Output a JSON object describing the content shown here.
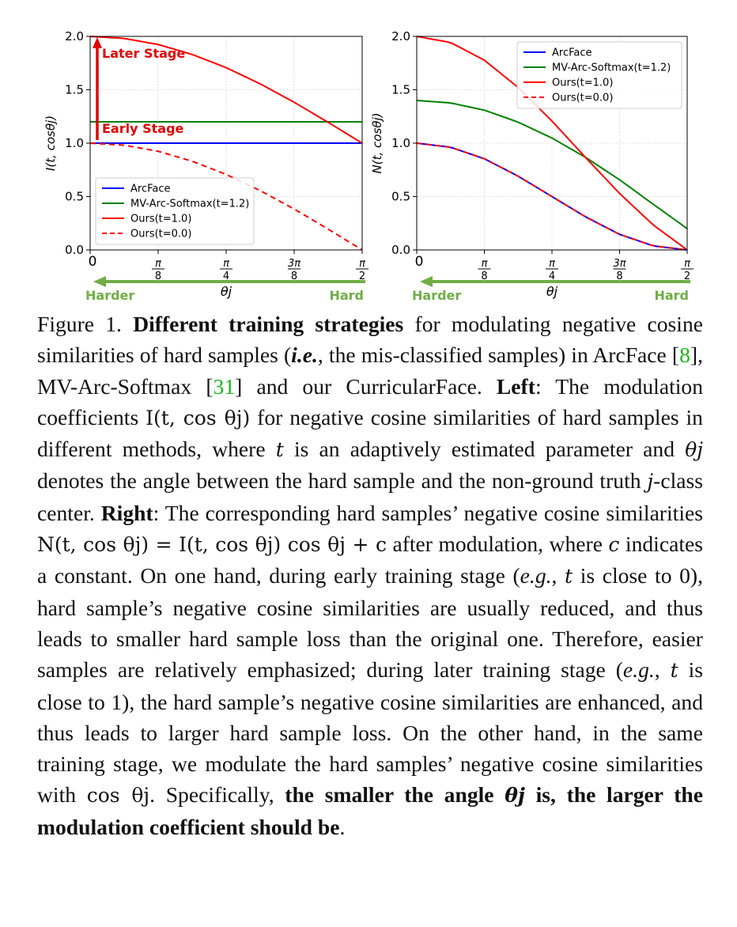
{
  "chart_data": [
    {
      "type": "line",
      "title": "",
      "xlabel": "θj",
      "ylabel": "I(t, cosθj)",
      "xlim": [
        0,
        1.5708
      ],
      "ylim": [
        0,
        2.0
      ],
      "xticks": [
        0,
        0.3927,
        0.7854,
        1.1781,
        1.5708
      ],
      "xtick_labels": [
        "0",
        "π/8",
        "π/4",
        "3π/8",
        "π/2"
      ],
      "yticks": [
        0,
        0.5,
        1.0,
        1.5,
        2.0
      ],
      "ytick_labels": [
        "0.0",
        "0.5",
        "1.0",
        "1.5",
        "2.0"
      ],
      "grid": true,
      "legend_position": "lower-left",
      "series": [
        {
          "name": "ArcFace",
          "color": "#0000ff",
          "dash": "solid",
          "x": [
            0,
            0.3927,
            0.7854,
            1.1781,
            1.5708
          ],
          "y": [
            1.0,
            1.0,
            1.0,
            1.0,
            1.0
          ]
        },
        {
          "name": "MV-Arc-Softmax(t=1.2)",
          "color": "#008000",
          "dash": "solid",
          "x": [
            0,
            0.3927,
            0.7854,
            1.1781,
            1.5708
          ],
          "y": [
            1.2,
            1.2,
            1.2,
            1.2,
            1.2
          ]
        },
        {
          "name": "Ours(t=1.0)",
          "color": "#ff0000",
          "dash": "solid",
          "x": [
            0,
            0.1963,
            0.3927,
            0.589,
            0.7854,
            0.9817,
            1.1781,
            1.3744,
            1.5708
          ],
          "y": [
            2.0,
            1.981,
            1.924,
            1.831,
            1.707,
            1.556,
            1.383,
            1.195,
            1.0
          ]
        },
        {
          "name": "Ours(t=0.0)",
          "color": "#ff0000",
          "dash": "dashed",
          "x": [
            0,
            0.1963,
            0.3927,
            0.589,
            0.7854,
            0.9817,
            1.1781,
            1.3744,
            1.5708
          ],
          "y": [
            1.0,
            0.981,
            0.924,
            0.831,
            0.707,
            0.556,
            0.383,
            0.195,
            0.0
          ]
        }
      ],
      "annotations": {
        "later": "Later Stage",
        "early": "Early Stage",
        "harder": "Harder",
        "hard": "Hard"
      }
    },
    {
      "type": "line",
      "title": "",
      "xlabel": "θj",
      "ylabel": "N(t, cosθj)",
      "xlim": [
        0,
        1.5708
      ],
      "ylim": [
        0,
        2.0
      ],
      "xticks": [
        0,
        0.3927,
        0.7854,
        1.1781,
        1.5708
      ],
      "xtick_labels": [
        "0",
        "π/8",
        "π/4",
        "3π/8",
        "π/2"
      ],
      "yticks": [
        0,
        0.5,
        1.0,
        1.5,
        2.0
      ],
      "ytick_labels": [
        "0.0",
        "0.5",
        "1.0",
        "1.5",
        "2.0"
      ],
      "grid": true,
      "legend_position": "top-right",
      "series": [
        {
          "name": "ArcFace",
          "color": "#0000ff",
          "dash": "solid",
          "x": [
            0,
            0.1963,
            0.3927,
            0.589,
            0.7854,
            0.9817,
            1.1781,
            1.3744,
            1.5708
          ],
          "y": [
            1.0,
            0.962,
            0.854,
            0.691,
            0.5,
            0.309,
            0.146,
            0.038,
            0.0
          ]
        },
        {
          "name": "MV-Arc-Softmax(t=1.2)",
          "color": "#008000",
          "dash": "solid",
          "x": [
            0,
            0.1963,
            0.3927,
            0.589,
            0.7854,
            0.9817,
            1.1781,
            1.3744,
            1.5708
          ],
          "y": [
            1.4,
            1.377,
            1.309,
            1.197,
            1.048,
            0.866,
            0.657,
            0.427,
            0.2
          ]
        },
        {
          "name": "Ours(t=1.0)",
          "color": "#ff0000",
          "dash": "solid",
          "x": [
            0,
            0.1963,
            0.3927,
            0.589,
            0.7854,
            0.9817,
            1.1781,
            1.3744,
            1.5708
          ],
          "y": [
            2.0,
            1.943,
            1.777,
            1.522,
            1.207,
            0.864,
            0.529,
            0.233,
            0.0
          ]
        },
        {
          "name": "Ours(t=0.0)",
          "color": "#ff0000",
          "dash": "dashed",
          "x": [
            0,
            0.1963,
            0.3927,
            0.589,
            0.7854,
            0.9817,
            1.1781,
            1.3744,
            1.5708
          ],
          "y": [
            1.0,
            0.962,
            0.854,
            0.691,
            0.5,
            0.309,
            0.146,
            0.038,
            0.0
          ]
        }
      ],
      "annotations": {
        "harder": "Harder",
        "hard": "Hard"
      }
    }
  ],
  "caption": {
    "label": "Figure 1.",
    "bold_title": "Different training strategies",
    "t1": " for modulating negative cosine similarities of hard samples (",
    "ie": "i.e.",
    "t2": ", the mis-classified samples) in ArcFace [",
    "cite1": "8",
    "t3": "], MV-Arc-Softmax [",
    "cite2": "31",
    "t4": "] and our CurricularFace. ",
    "left_label": "Left",
    "t5": ": The modulation coefficients ",
    "m_I": "I(t, cos θj)",
    "t6": " for negative cosine similarities of hard samples in different methods, where ",
    "m_t": "t",
    "t7": " is an adaptively estimated parameter and ",
    "m_theta": "θj",
    "t8": " denotes the angle between the hard sample and the non-ground truth ",
    "m_j": "j",
    "t9": "-class center. ",
    "right_label": "Right",
    "t10": ": The corresponding hard samples’ negative cosine similarities ",
    "m_N": "N(t, cos θj) = I(t, cos θj) cos θj + c",
    "t11": " after modulation, where ",
    "m_c": "c",
    "t12": " indicates a constant. On one hand, during early training stage (",
    "eg1": "e.g.",
    "t13": ", ",
    "m_t2": "t",
    "t14": " is close to 0), hard sample’s negative cosine similarities are usually reduced, and thus leads to smaller hard sample loss than the original one. Therefore, easier samples are relatively emphasized; during later training stage (",
    "eg2": "e.g.",
    "t15": ", ",
    "m_t3": "t",
    "t16": " is close to 1), the hard sample’s negative cosine similarities are enhanced, and thus leads to larger hard sample loss. On the other hand, in the same training stage, we modulate the hard samples’ negative cosine similarities with ",
    "m_cos": "cos θj",
    "t17": ". Specifically, ",
    "bold_end1": "the smaller the angle ",
    "m_theta2": "θj",
    "bold_end2": " is, the larger the modulation coefficient should be",
    "t18": "."
  }
}
